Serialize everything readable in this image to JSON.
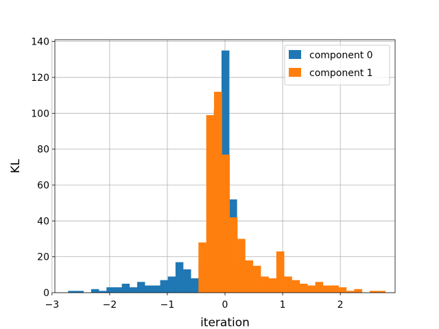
{
  "chart_data": {
    "type": "bar",
    "xlabel": "iteration",
    "ylabel": "KL",
    "xlim": [
      -2.95,
      2.95
    ],
    "ylim": [
      0,
      141
    ],
    "xticks": [
      -3,
      -2,
      -1,
      0,
      1,
      2
    ],
    "yticks": [
      0,
      20,
      40,
      60,
      80,
      100,
      120,
      140
    ],
    "grid": true,
    "legend": "top-right",
    "colors": {
      "component 0": "#1f77b4",
      "component 1": "#ff7f0e"
    },
    "series": [
      {
        "name": "component 0",
        "bin_width": 0.133,
        "bins": [
          [
            -2.72,
            1
          ],
          [
            -2.587,
            1
          ],
          [
            -2.454,
            0
          ],
          [
            -2.321,
            2
          ],
          [
            -2.188,
            1
          ],
          [
            -2.055,
            3
          ],
          [
            -1.922,
            3
          ],
          [
            -1.789,
            5
          ],
          [
            -1.656,
            3
          ],
          [
            -1.523,
            6
          ],
          [
            -1.39,
            4
          ],
          [
            -1.257,
            4
          ],
          [
            -1.124,
            7
          ],
          [
            -0.991,
            9
          ],
          [
            -0.858,
            17
          ],
          [
            -0.725,
            13
          ],
          [
            -0.592,
            8
          ],
          [
            -0.459,
            16
          ],
          [
            -0.326,
            14
          ],
          [
            -0.193,
            102
          ],
          [
            -0.06,
            135
          ],
          [
            0.073,
            52
          ],
          [
            0.206,
            17
          ],
          [
            0.339,
            16
          ],
          [
            0.472,
            14
          ],
          [
            0.605,
            3
          ],
          [
            0.738,
            3
          ],
          [
            0.871,
            1
          ],
          [
            1.004,
            0
          ],
          [
            1.137,
            1
          ],
          [
            1.27,
            0
          ],
          [
            1.403,
            1
          ],
          [
            1.536,
            0
          ],
          [
            1.669,
            1
          ],
          [
            1.802,
            1
          ],
          [
            1.935,
            1
          ]
        ]
      },
      {
        "name": "component 1",
        "bin_width": 0.135,
        "bins": [
          [
            -0.46,
            28
          ],
          [
            -0.325,
            99
          ],
          [
            -0.19,
            112
          ],
          [
            -0.055,
            77
          ],
          [
            0.08,
            42
          ],
          [
            0.215,
            30
          ],
          [
            0.35,
            18
          ],
          [
            0.485,
            15
          ],
          [
            0.62,
            9
          ],
          [
            0.755,
            8
          ],
          [
            0.89,
            23
          ],
          [
            1.025,
            9
          ],
          [
            1.16,
            7
          ],
          [
            1.295,
            5
          ],
          [
            1.43,
            4
          ],
          [
            1.565,
            6
          ],
          [
            1.7,
            4
          ],
          [
            1.835,
            4
          ],
          [
            1.97,
            3
          ],
          [
            2.105,
            1
          ],
          [
            2.24,
            2
          ],
          [
            2.375,
            0
          ],
          [
            2.51,
            1
          ],
          [
            2.645,
            1
          ]
        ]
      }
    ]
  }
}
